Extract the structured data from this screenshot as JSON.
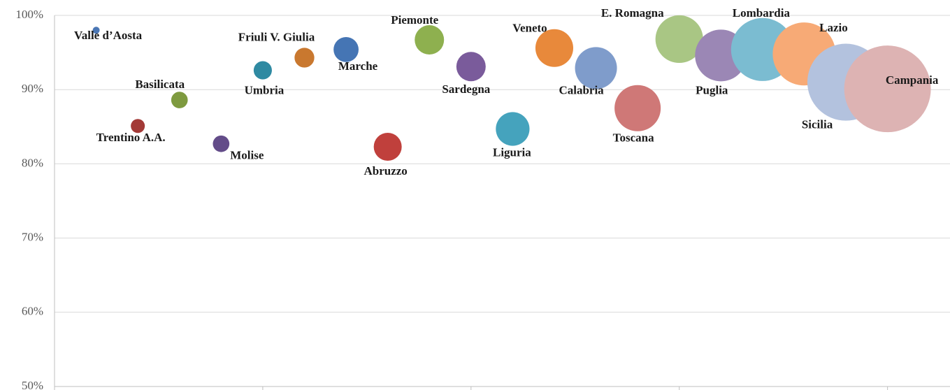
{
  "chart_data": {
    "type": "bubble",
    "categories": [
      "Valle d’Aosta",
      "Trentino A.A.",
      "Basilicata",
      "Molise",
      "Umbria",
      "Friuli V. Giulia",
      "Marche",
      "Abruzzo",
      "Piemonte",
      "Sardegna",
      "Liguria",
      "Veneto",
      "Calabria",
      "Toscana",
      "E. Romagna",
      "Puglia",
      "Lombardia",
      "Lazio",
      "Sicilia",
      "Campania"
    ],
    "x": [
      1,
      2,
      3,
      4,
      5,
      6,
      7,
      8,
      9,
      10,
      11,
      12,
      13,
      14,
      15,
      16,
      17,
      18,
      19,
      20
    ],
    "values": [
      98.0,
      85.1,
      88.6,
      82.7,
      92.6,
      94.3,
      95.4,
      82.3,
      96.7,
      93.1,
      84.7,
      95.6,
      92.9,
      87.5,
      96.8,
      94.6,
      95.4,
      94.8,
      91.0,
      90.1
    ],
    "sizes": [
      2.5,
      10,
      14,
      14,
      17,
      20,
      32,
      40,
      44,
      44,
      58,
      73,
      90,
      109,
      116,
      137,
      203,
      203,
      303,
      384
    ],
    "colors": [
      "#4a76b4",
      "#a33a37",
      "#7e9a3f",
      "#634c89",
      "#2f8aa2",
      "#c9782f",
      "#4575b4",
      "#c0403c",
      "#8eb04f",
      "#7a5b9b",
      "#45a3bd",
      "#e8893b",
      "#7f9ccb",
      "#cf7877",
      "#a9c684",
      "#9b87b5",
      "#7bbcd1",
      "#f7aa76",
      "#b3c2de",
      "#ddb3b3"
    ],
    "xlim": [
      0,
      21.5
    ],
    "xticks": [
      0,
      5,
      10,
      15,
      20
    ],
    "ylim": [
      50,
      100
    ],
    "yticks": [
      {
        "value": 50,
        "label": "50%"
      },
      {
        "value": 60,
        "label": "60%"
      },
      {
        "value": 70,
        "label": "70%"
      },
      {
        "value": 80,
        "label": "80%"
      },
      {
        "value": 90,
        "label": "90%"
      },
      {
        "value": 100,
        "label": "100%"
      }
    ],
    "grid": true
  }
}
